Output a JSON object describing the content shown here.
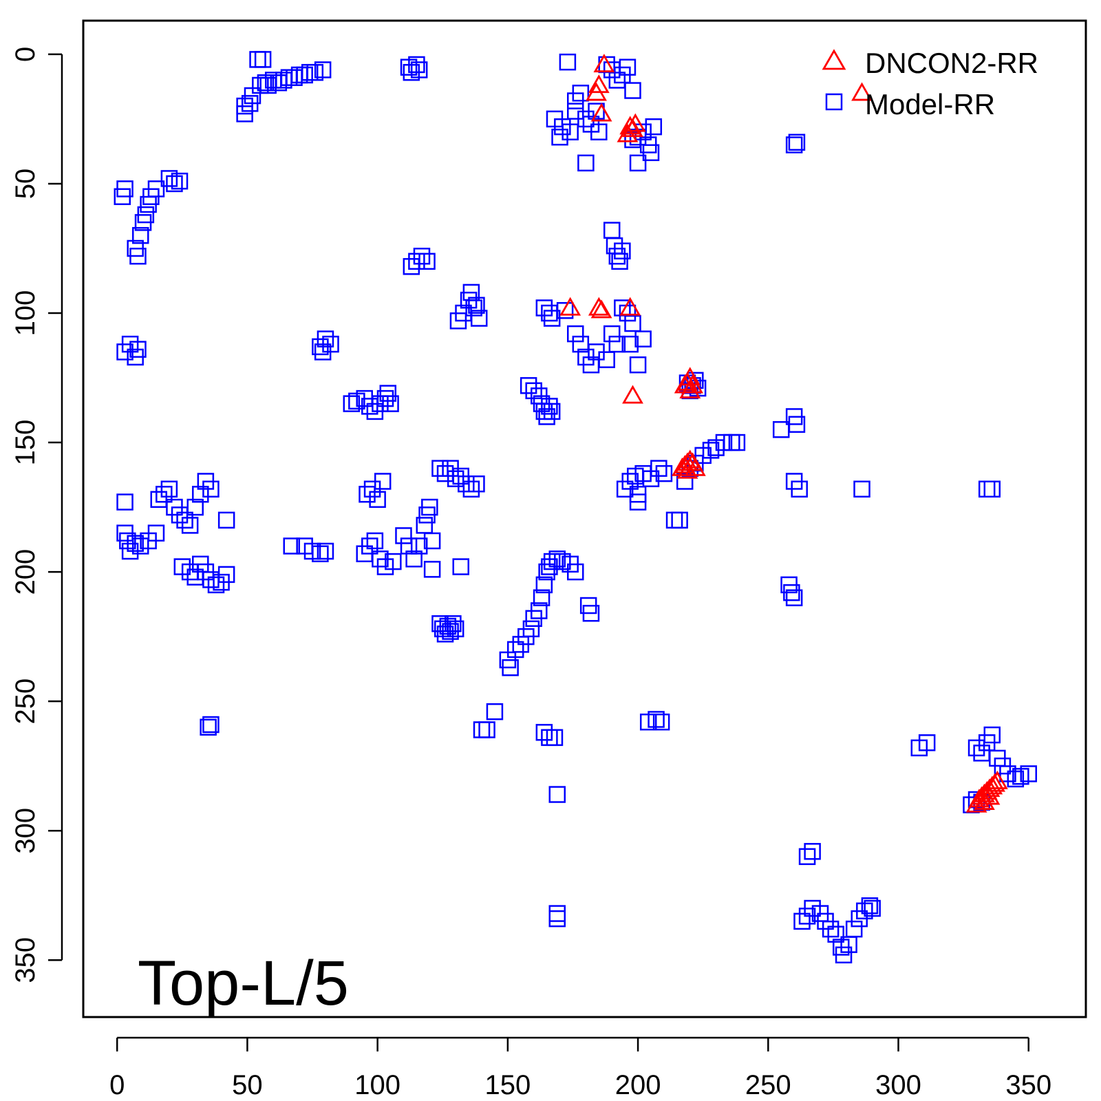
{
  "chart_data": {
    "type": "scatter",
    "title": "",
    "xlabel": "",
    "ylabel": "",
    "xlim": [
      -13,
      372
    ],
    "ylim": [
      372,
      -13
    ],
    "y_axis_inverted": true,
    "xticks": [
      0,
      50,
      100,
      150,
      200,
      250,
      300,
      350
    ],
    "yticks": [
      0,
      50,
      100,
      150,
      200,
      250,
      300,
      350
    ],
    "grid": false,
    "legend_position": "top-right",
    "annotation": "Top-L/5",
    "colors": {
      "DNCON2-RR": "#ff0000",
      "Model-RR": "#0000ff",
      "axes": "#000000"
    },
    "series": [
      {
        "name": "DNCON2-RR",
        "marker": "triangle",
        "points": [
          [
            187,
            4
          ],
          [
            185,
            12
          ],
          [
            184,
            15
          ],
          [
            186,
            23
          ],
          [
            197,
            28
          ],
          [
            198,
            29
          ],
          [
            196,
            31
          ],
          [
            199,
            27
          ],
          [
            174,
            98
          ],
          [
            185,
            98
          ],
          [
            186,
            99
          ],
          [
            197,
            98
          ],
          [
            198,
            132
          ],
          [
            219,
            127
          ],
          [
            220,
            125
          ],
          [
            221,
            128
          ],
          [
            218,
            128
          ],
          [
            220,
            130
          ],
          [
            218,
            159
          ],
          [
            219,
            158
          ],
          [
            220,
            157
          ],
          [
            221,
            158
          ],
          [
            222,
            160
          ],
          [
            219,
            161
          ],
          [
            217,
            160
          ],
          [
            330,
            290
          ],
          [
            331,
            288
          ],
          [
            332,
            287
          ],
          [
            333,
            286
          ],
          [
            334,
            285
          ],
          [
            335,
            284
          ],
          [
            336,
            283
          ],
          [
            337,
            282
          ],
          [
            338,
            281
          ],
          [
            333,
            289
          ],
          [
            335,
            287
          ],
          [
            286,
            15
          ]
        ]
      },
      {
        "name": "Model-RR",
        "marker": "square",
        "points": [
          [
            49,
            20
          ],
          [
            49,
            23
          ],
          [
            51,
            19
          ],
          [
            52,
            16
          ],
          [
            54,
            2
          ],
          [
            55,
            12
          ],
          [
            56,
            2
          ],
          [
            57,
            11
          ],
          [
            58,
            12
          ],
          [
            60,
            10
          ],
          [
            62,
            11
          ],
          [
            64,
            10
          ],
          [
            66,
            9
          ],
          [
            68,
            9
          ],
          [
            70,
            8
          ],
          [
            72,
            8
          ],
          [
            74,
            7
          ],
          [
            76,
            7
          ],
          [
            79,
            6
          ],
          [
            112,
            5
          ],
          [
            113,
            7
          ],
          [
            115,
            4
          ],
          [
            116,
            6
          ],
          [
            173,
            3
          ],
          [
            176,
            18
          ],
          [
            178,
            15
          ],
          [
            180,
            25
          ],
          [
            182,
            27
          ],
          [
            184,
            22
          ],
          [
            185,
            30
          ],
          [
            188,
            4
          ],
          [
            190,
            6
          ],
          [
            192,
            10
          ],
          [
            194,
            8
          ],
          [
            196,
            5
          ],
          [
            198,
            14
          ],
          [
            168,
            25
          ],
          [
            170,
            32
          ],
          [
            171,
            28
          ],
          [
            174,
            30
          ],
          [
            176,
            22
          ],
          [
            180,
            42
          ],
          [
            198,
            33
          ],
          [
            200,
            32
          ],
          [
            202,
            30
          ],
          [
            204,
            35
          ],
          [
            205,
            38
          ],
          [
            206,
            28
          ],
          [
            200,
            42
          ],
          [
            260,
            35
          ],
          [
            261,
            34
          ],
          [
            2,
            55
          ],
          [
            3,
            52
          ],
          [
            7,
            75
          ],
          [
            8,
            78
          ],
          [
            9,
            70
          ],
          [
            10,
            65
          ],
          [
            11,
            62
          ],
          [
            12,
            58
          ],
          [
            13,
            55
          ],
          [
            15,
            52
          ],
          [
            20,
            48
          ],
          [
            22,
            50
          ],
          [
            24,
            49
          ],
          [
            113,
            82
          ],
          [
            115,
            80
          ],
          [
            117,
            78
          ],
          [
            119,
            80
          ],
          [
            190,
            68
          ],
          [
            191,
            74
          ],
          [
            192,
            78
          ],
          [
            193,
            80
          ],
          [
            194,
            76
          ],
          [
            131,
            103
          ],
          [
            133,
            100
          ],
          [
            135,
            95
          ],
          [
            136,
            92
          ],
          [
            137,
            98
          ],
          [
            138,
            97
          ],
          [
            139,
            102
          ],
          [
            164,
            98
          ],
          [
            166,
            100
          ],
          [
            167,
            102
          ],
          [
            172,
            99
          ],
          [
            176,
            108
          ],
          [
            178,
            112
          ],
          [
            180,
            117
          ],
          [
            182,
            120
          ],
          [
            184,
            115
          ],
          [
            188,
            118
          ],
          [
            190,
            108
          ],
          [
            192,
            112
          ],
          [
            194,
            98
          ],
          [
            196,
            100
          ],
          [
            198,
            104
          ],
          [
            200,
            120
          ],
          [
            202,
            110
          ],
          [
            197,
            112
          ],
          [
            3,
            115
          ],
          [
            5,
            112
          ],
          [
            7,
            117
          ],
          [
            8,
            114
          ],
          [
            78,
            113
          ],
          [
            79,
            115
          ],
          [
            80,
            110
          ],
          [
            82,
            112
          ],
          [
            90,
            135
          ],
          [
            92,
            134
          ],
          [
            95,
            133
          ],
          [
            97,
            136
          ],
          [
            99,
            138
          ],
          [
            101,
            135
          ],
          [
            103,
            133
          ],
          [
            104,
            131
          ],
          [
            105,
            135
          ],
          [
            158,
            128
          ],
          [
            160,
            130
          ],
          [
            162,
            132
          ],
          [
            163,
            135
          ],
          [
            164,
            138
          ],
          [
            165,
            140
          ],
          [
            166,
            136
          ],
          [
            167,
            138
          ],
          [
            219,
            127
          ],
          [
            220,
            130
          ],
          [
            221,
            128
          ],
          [
            222,
            126
          ],
          [
            223,
            129
          ],
          [
            255,
            145
          ],
          [
            260,
            140
          ],
          [
            261,
            143
          ],
          [
            195,
            168
          ],
          [
            197,
            165
          ],
          [
            199,
            163
          ],
          [
            200,
            170
          ],
          [
            202,
            162
          ],
          [
            205,
            164
          ],
          [
            208,
            160
          ],
          [
            210,
            162
          ],
          [
            214,
            180
          ],
          [
            216,
            180
          ],
          [
            218,
            165
          ],
          [
            220,
            160
          ],
          [
            222,
            158
          ],
          [
            225,
            155
          ],
          [
            228,
            153
          ],
          [
            230,
            152
          ],
          [
            233,
            150
          ],
          [
            236,
            150
          ],
          [
            238,
            150
          ],
          [
            200,
            173
          ],
          [
            260,
            165
          ],
          [
            262,
            168
          ],
          [
            286,
            168
          ],
          [
            334,
            168
          ],
          [
            336,
            168
          ],
          [
            3,
            173
          ],
          [
            3,
            185
          ],
          [
            4,
            188
          ],
          [
            5,
            192
          ],
          [
            7,
            189
          ],
          [
            9,
            190
          ],
          [
            12,
            188
          ],
          [
            15,
            185
          ],
          [
            16,
            172
          ],
          [
            18,
            170
          ],
          [
            20,
            168
          ],
          [
            22,
            175
          ],
          [
            24,
            178
          ],
          [
            26,
            180
          ],
          [
            28,
            182
          ],
          [
            30,
            175
          ],
          [
            32,
            170
          ],
          [
            34,
            165
          ],
          [
            36,
            168
          ],
          [
            42,
            180
          ],
          [
            25,
            198
          ],
          [
            28,
            200
          ],
          [
            30,
            202
          ],
          [
            32,
            197
          ],
          [
            34,
            200
          ],
          [
            36,
            203
          ],
          [
            38,
            205
          ],
          [
            40,
            204
          ],
          [
            42,
            201
          ],
          [
            67,
            190
          ],
          [
            72,
            190
          ],
          [
            75,
            192
          ],
          [
            78,
            193
          ],
          [
            80,
            192
          ],
          [
            96,
            170
          ],
          [
            98,
            168
          ],
          [
            100,
            172
          ],
          [
            102,
            165
          ],
          [
            95,
            193
          ],
          [
            97,
            190
          ],
          [
            99,
            188
          ],
          [
            101,
            195
          ],
          [
            103,
            198
          ],
          [
            106,
            196
          ],
          [
            110,
            186
          ],
          [
            112,
            190
          ],
          [
            114,
            195
          ],
          [
            116,
            190
          ],
          [
            118,
            182
          ],
          [
            119,
            178
          ],
          [
            120,
            175
          ],
          [
            121,
            188
          ],
          [
            121,
            199
          ],
          [
            124,
            160
          ],
          [
            126,
            162
          ],
          [
            128,
            160
          ],
          [
            130,
            164
          ],
          [
            132,
            163
          ],
          [
            134,
            166
          ],
          [
            136,
            168
          ],
          [
            138,
            166
          ],
          [
            132,
            198
          ],
          [
            124,
            220
          ],
          [
            125,
            222
          ],
          [
            126,
            224
          ],
          [
            127,
            221
          ],
          [
            128,
            223
          ],
          [
            129,
            220
          ],
          [
            130,
            222
          ],
          [
            150,
            234
          ],
          [
            151,
            237
          ],
          [
            153,
            230
          ],
          [
            155,
            228
          ],
          [
            157,
            225
          ],
          [
            159,
            222
          ],
          [
            160,
            218
          ],
          [
            162,
            215
          ],
          [
            163,
            210
          ],
          [
            164,
            205
          ],
          [
            165,
            200
          ],
          [
            166,
            198
          ],
          [
            167,
            196
          ],
          [
            169,
            195
          ],
          [
            171,
            196
          ],
          [
            174,
            197
          ],
          [
            176,
            200
          ],
          [
            181,
            213
          ],
          [
            182,
            216
          ],
          [
            140,
            261
          ],
          [
            142,
            261
          ],
          [
            145,
            254
          ],
          [
            164,
            262
          ],
          [
            166,
            264
          ],
          [
            168,
            264
          ],
          [
            169,
            286
          ],
          [
            204,
            258
          ],
          [
            207,
            257
          ],
          [
            209,
            258
          ],
          [
            258,
            205
          ],
          [
            259,
            208
          ],
          [
            260,
            210
          ],
          [
            308,
            268
          ],
          [
            311,
            266
          ],
          [
            330,
            268
          ],
          [
            332,
            270
          ],
          [
            334,
            266
          ],
          [
            336,
            263
          ],
          [
            338,
            272
          ],
          [
            340,
            275
          ],
          [
            342,
            278
          ],
          [
            345,
            280
          ],
          [
            347,
            279
          ],
          [
            350,
            278
          ],
          [
            330,
            288
          ],
          [
            332,
            289
          ],
          [
            328,
            290
          ],
          [
            35,
            260
          ],
          [
            36,
            259
          ],
          [
            265,
            310
          ],
          [
            267,
            308
          ],
          [
            169,
            332
          ],
          [
            169,
            334
          ],
          [
            263,
            335
          ],
          [
            265,
            333
          ],
          [
            267,
            330
          ],
          [
            270,
            332
          ],
          [
            272,
            335
          ],
          [
            274,
            338
          ],
          [
            276,
            340
          ],
          [
            278,
            345
          ],
          [
            279,
            348
          ],
          [
            281,
            344
          ],
          [
            283,
            338
          ],
          [
            285,
            334
          ],
          [
            287,
            331
          ],
          [
            289,
            329
          ],
          [
            290,
            330
          ]
        ]
      }
    ]
  }
}
